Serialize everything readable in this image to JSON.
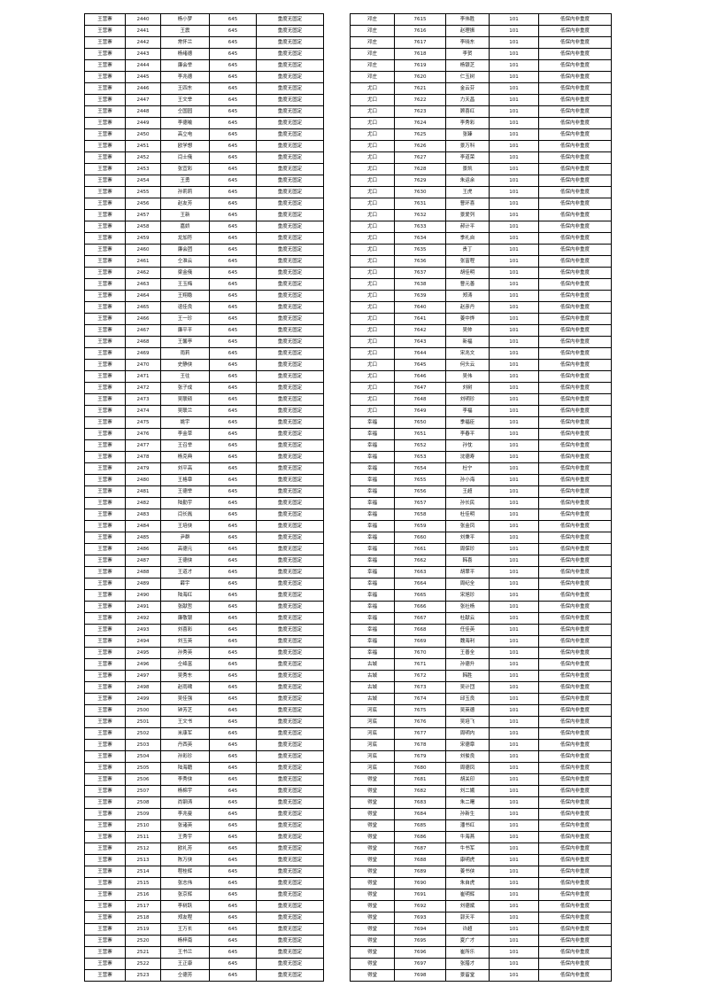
{
  "left_table": {
    "rows": [
      [
        "王营寨",
        "2440",
        "杨小梦",
        "645",
        "重度无固定"
      ],
      [
        "王营寨",
        "2441",
        "王震",
        "645",
        "重度无固定"
      ],
      [
        "王营寨",
        "2442",
        "常怀兰",
        "645",
        "重度无固定"
      ],
      [
        "王营寨",
        "2443",
        "杨绪德",
        "645",
        "重度无固定"
      ],
      [
        "王营寨",
        "2444",
        "廉会举",
        "645",
        "重度无固定"
      ],
      [
        "王营寨",
        "2445",
        "李兆德",
        "645",
        "重度无固定"
      ],
      [
        "王营寨",
        "2446",
        "王四东",
        "645",
        "重度无固定"
      ],
      [
        "王营寨",
        "2447",
        "王文举",
        "645",
        "重度无固定"
      ],
      [
        "王营寨",
        "2448",
        "仝国园",
        "645",
        "重度无固定"
      ],
      [
        "王营寨",
        "2449",
        "李德喻",
        "645",
        "重度无固定"
      ],
      [
        "王营寨",
        "2450",
        "高立电",
        "645",
        "重度无固定"
      ],
      [
        "王营寨",
        "2451",
        "欧学想",
        "645",
        "重度无固定"
      ],
      [
        "王营寨",
        "2452",
        "闫士俄",
        "645",
        "重度无固定"
      ],
      [
        "王营寨",
        "2453",
        "张宜彩",
        "645",
        "重度无固定"
      ],
      [
        "王营寨",
        "2454",
        "王勇",
        "645",
        "重度无固定"
      ],
      [
        "王营寨",
        "2455",
        "孙莉莉",
        "645",
        "重度无固定"
      ],
      [
        "王营寨",
        "2456",
        "赵友芳",
        "645",
        "重度无固定"
      ],
      [
        "王营寨",
        "2457",
        "王新",
        "645",
        "重度无固定"
      ],
      [
        "王营寨",
        "2458",
        "嘉娇",
        "645",
        "重度无固定"
      ],
      [
        "王营寨",
        "2459",
        "龙加符",
        "645",
        "重度无固定"
      ],
      [
        "王营寨",
        "2460",
        "廉会团",
        "645",
        "重度无固定"
      ],
      [
        "王营寨",
        "2461",
        "仝淮云",
        "645",
        "重度无固定"
      ],
      [
        "王营寨",
        "2462",
        "梁金俄",
        "645",
        "重度无固定"
      ],
      [
        "王营寨",
        "2463",
        "王玉梅",
        "645",
        "重度无固定"
      ],
      [
        "王营寨",
        "2464",
        "王翔稳",
        "645",
        "重度无固定"
      ],
      [
        "王营寨",
        "2465",
        "谊佳良",
        "645",
        "重度无固定"
      ],
      [
        "王营寨",
        "2466",
        "王一珍",
        "645",
        "重度无固定"
      ],
      [
        "王营寨",
        "2467",
        "廉平平",
        "645",
        "重度无固定"
      ],
      [
        "王营寨",
        "2468",
        "王馨亭",
        "645",
        "重度无固定"
      ],
      [
        "王营寨",
        "2469",
        "雨莉",
        "645",
        "重度无固定"
      ],
      [
        "王营寨",
        "2470",
        "史静侠",
        "645",
        "重度无固定"
      ],
      [
        "王营寨",
        "2471",
        "王往",
        "645",
        "重度无固定"
      ],
      [
        "王营寨",
        "2472",
        "张子成",
        "645",
        "重度无固定"
      ],
      [
        "王营寨",
        "2473",
        "吴联硕",
        "645",
        "重度无固定"
      ],
      [
        "王营寨",
        "2474",
        "吴联兰",
        "645",
        "重度无固定"
      ],
      [
        "王营寨",
        "2475",
        "姚宇",
        "645",
        "重度无固定"
      ],
      [
        "王营寨",
        "2476",
        "李金草",
        "645",
        "重度无固定"
      ],
      [
        "王营寨",
        "2477",
        "王召举",
        "645",
        "重度无固定"
      ],
      [
        "王营寨",
        "2478",
        "杨克典",
        "645",
        "重度无固定"
      ],
      [
        "王营寨",
        "2479",
        "刘平高",
        "645",
        "重度无固定"
      ],
      [
        "王营寨",
        "2480",
        "王格章",
        "645",
        "重度无固定"
      ],
      [
        "王营寨",
        "2481",
        "王德举",
        "645",
        "重度无固定"
      ],
      [
        "王营寨",
        "2482",
        "陆勤宇",
        "645",
        "重度无固定"
      ],
      [
        "王营寨",
        "2483",
        "闫长胤",
        "645",
        "重度无固定"
      ],
      [
        "王营寨",
        "2484",
        "王培侠",
        "645",
        "重度无固定"
      ],
      [
        "王营寨",
        "2485",
        "尹群",
        "645",
        "重度无固定"
      ],
      [
        "王营寨",
        "2486",
        "高德元",
        "645",
        "重度无固定"
      ],
      [
        "王营寨",
        "2487",
        "王德侠",
        "645",
        "重度无固定"
      ],
      [
        "王营寨",
        "2488",
        "王道才",
        "645",
        "重度无固定"
      ],
      [
        "王营寨",
        "2489",
        "薛宇",
        "645",
        "重度无固定"
      ],
      [
        "王营寨",
        "2490",
        "陆海红",
        "645",
        "重度无固定"
      ],
      [
        "王营寨",
        "2491",
        "张献哲",
        "645",
        "重度无固定"
      ],
      [
        "王营寨",
        "2492",
        "廉敬银",
        "645",
        "重度无固定"
      ],
      [
        "王营寨",
        "2493",
        "刘喜彩",
        "645",
        "重度无固定"
      ],
      [
        "王营寨",
        "2494",
        "刘玉英",
        "645",
        "重度无固定"
      ],
      [
        "王营寨",
        "2495",
        "孙秀英",
        "645",
        "重度无固定"
      ],
      [
        "王营寨",
        "2496",
        "仝绛富",
        "645",
        "重度无固定"
      ],
      [
        "王营寨",
        "2497",
        "吴秀东",
        "645",
        "重度无固定"
      ],
      [
        "王营寨",
        "2498",
        "赵雨啸",
        "645",
        "重度无固定"
      ],
      [
        "王营寨",
        "2499",
        "吴佳强",
        "645",
        "重度无固定"
      ],
      [
        "王营寨",
        "2500",
        "钟芳芝",
        "645",
        "重度无固定"
      ],
      [
        "王营寨",
        "2501",
        "王文书",
        "645",
        "重度无固定"
      ],
      [
        "王营寨",
        "2502",
        "米康军",
        "645",
        "重度无固定"
      ],
      [
        "王营寨",
        "2503",
        "丹西英",
        "645",
        "重度无固定"
      ],
      [
        "王营寨",
        "2504",
        "孙彩珍",
        "645",
        "重度无固定"
      ],
      [
        "王营寨",
        "2505",
        "陆海籍",
        "645",
        "重度无固定"
      ],
      [
        "王营寨",
        "2506",
        "李秀侠",
        "645",
        "重度无固定"
      ],
      [
        "王营寨",
        "2507",
        "杨棉宇",
        "645",
        "重度无固定"
      ],
      [
        "王营寨",
        "2508",
        "尚钢涛",
        "645",
        "重度无固定"
      ],
      [
        "王营寨",
        "2509",
        "李兆曼",
        "645",
        "重度无固定"
      ],
      [
        "王营寨",
        "2510",
        "张诸英",
        "645",
        "重度无固定"
      ],
      [
        "王营寨",
        "2511",
        "王秀宇",
        "645",
        "重度无固定"
      ],
      [
        "王营寨",
        "2512",
        "欧礼芳",
        "645",
        "重度无固定"
      ],
      [
        "王营寨",
        "2513",
        "陈万侠",
        "645",
        "重度无固定"
      ],
      [
        "王营寨",
        "2514",
        "程桂辉",
        "645",
        "重度无固定"
      ],
      [
        "王营寨",
        "2515",
        "张志伟",
        "645",
        "重度无固定"
      ],
      [
        "王营寨",
        "2516",
        "张京辉",
        "645",
        "重度无固定"
      ],
      [
        "王营寨",
        "2517",
        "李树跃",
        "645",
        "重度无固定"
      ],
      [
        "王营寨",
        "2518",
        "郑友程",
        "645",
        "重度无固定"
      ],
      [
        "王营寨",
        "2519",
        "王万长",
        "645",
        "重度无固定"
      ],
      [
        "王营寨",
        "2520",
        "杨梓南",
        "645",
        "重度无固定"
      ],
      [
        "王营寨",
        "2521",
        "王书兰",
        "645",
        "重度无固定"
      ],
      [
        "王营寨",
        "2522",
        "王正康",
        "645",
        "重度无固定"
      ],
      [
        "王营寨",
        "2523",
        "仝德芳",
        "645",
        "重度无固定"
      ]
    ]
  },
  "right_table": {
    "rows": [
      [
        "邓庄",
        "7615",
        "李伟胜",
        "101",
        "低保内非重度"
      ],
      [
        "邓庄",
        "7616",
        "赵理振",
        "101",
        "低保内非重度"
      ],
      [
        "邓庄",
        "7617",
        "李晓东",
        "101",
        "低保内非重度"
      ],
      [
        "邓庄",
        "7618",
        "李贺",
        "101",
        "低保内非重度"
      ],
      [
        "邓庄",
        "7619",
        "杨银芝",
        "101",
        "低保内非重度"
      ],
      [
        "邓庄",
        "7620",
        "仁玉树",
        "101",
        "低保内非重度"
      ],
      [
        "尤口",
        "7621",
        "金云芬",
        "101",
        "低保内非重度"
      ],
      [
        "尤口",
        "7622",
        "力天昌",
        "101",
        "低保内非重度"
      ],
      [
        "尤口",
        "7623",
        "顾喜红",
        "101",
        "低保内非重度"
      ],
      [
        "尤口",
        "7624",
        "李秀彩",
        "101",
        "低保内非重度"
      ],
      [
        "尤口",
        "7625",
        "张臻",
        "101",
        "低保内非重度"
      ],
      [
        "尤口",
        "7626",
        "景万科",
        "101",
        "低保内非重度"
      ],
      [
        "尤口",
        "7627",
        "李道荣",
        "101",
        "低保内非重度"
      ],
      [
        "尤口",
        "7628",
        "景凯",
        "101",
        "低保内非重度"
      ],
      [
        "尤口",
        "7629",
        "朱运余",
        "101",
        "低保内非重度"
      ],
      [
        "尤口",
        "7630",
        "王虎",
        "101",
        "低保内非重度"
      ],
      [
        "尤口",
        "7631",
        "曹环喜",
        "101",
        "低保内非重度"
      ],
      [
        "尤口",
        "7632",
        "景爱列",
        "101",
        "低保内非重度"
      ],
      [
        "尤口",
        "7633",
        "郝计平",
        "101",
        "低保内非重度"
      ],
      [
        "尤口",
        "7634",
        "季礼自",
        "101",
        "低保内非重度"
      ],
      [
        "尤口",
        "7635",
        "贵丁",
        "101",
        "低保内非重度"
      ],
      [
        "尤口",
        "7636",
        "张富程",
        "101",
        "低保内非重度"
      ],
      [
        "尤口",
        "7637",
        "胡佳明",
        "101",
        "低保内非重度"
      ],
      [
        "尤口",
        "7638",
        "曹元善",
        "101",
        "低保内非重度"
      ],
      [
        "尤口",
        "7639",
        "郑涛",
        "101",
        "低保内非重度"
      ],
      [
        "尤口",
        "7640",
        "赵彦丹",
        "101",
        "低保内非重度"
      ],
      [
        "尤口",
        "7641",
        "姜中烨",
        "101",
        "低保内非重度"
      ],
      [
        "尤口",
        "7642",
        "吴帅",
        "101",
        "低保内非重度"
      ],
      [
        "尤口",
        "7643",
        "新福",
        "101",
        "低保内非重度"
      ],
      [
        "尤口",
        "7644",
        "宋兆文",
        "101",
        "低保内非重度"
      ],
      [
        "尤口",
        "7645",
        "何头云",
        "101",
        "低保内非重度"
      ],
      [
        "尤口",
        "7646",
        "吴伟",
        "101",
        "低保内非重度"
      ],
      [
        "尤口",
        "7647",
        "刘树",
        "101",
        "低保内非重度"
      ],
      [
        "尤口",
        "7648",
        "刘明珍",
        "101",
        "低保内非重度"
      ],
      [
        "尤口",
        "7649",
        "李福",
        "101",
        "低保内非重度"
      ],
      [
        "幸福",
        "7650",
        "季福臣",
        "101",
        "低保内非重度"
      ],
      [
        "幸福",
        "7651",
        "李春平",
        "101",
        "低保内非重度"
      ],
      [
        "幸福",
        "7652",
        "孙忱",
        "101",
        "低保内非重度"
      ],
      [
        "幸福",
        "7653",
        "沈德寿",
        "101",
        "低保内非重度"
      ],
      [
        "幸福",
        "7654",
        "杜宁",
        "101",
        "低保内非重度"
      ],
      [
        "幸福",
        "7655",
        "孙小海",
        "101",
        "低保内非重度"
      ],
      [
        "幸福",
        "7656",
        "王超",
        "101",
        "低保内非重度"
      ],
      [
        "幸福",
        "7657",
        "孙长民",
        "101",
        "低保内非重度"
      ],
      [
        "幸福",
        "7658",
        "杜佳明",
        "101",
        "低保内非重度"
      ],
      [
        "幸福",
        "7659",
        "张金凤",
        "101",
        "低保内非重度"
      ],
      [
        "幸福",
        "7660",
        "刘秉平",
        "101",
        "低保内非重度"
      ],
      [
        "幸福",
        "7661",
        "周保珍",
        "101",
        "低保内非重度"
      ],
      [
        "幸福",
        "7662",
        "韩喜",
        "101",
        "低保内非重度"
      ],
      [
        "幸福",
        "7663",
        "胡翠平",
        "101",
        "低保内非重度"
      ],
      [
        "幸福",
        "7664",
        "周纪全",
        "101",
        "低保内非重度"
      ],
      [
        "幸福",
        "7665",
        "宋旭珍",
        "101",
        "低保内非重度"
      ],
      [
        "幸福",
        "7666",
        "张社杨",
        "101",
        "低保内非重度"
      ],
      [
        "幸福",
        "7667",
        "杜献云",
        "101",
        "低保内非重度"
      ],
      [
        "幸福",
        "7668",
        "任佳英",
        "101",
        "低保内非重度"
      ],
      [
        "幸福",
        "7669",
        "魏海利",
        "101",
        "低保内非重度"
      ],
      [
        "幸福",
        "7670",
        "王善全",
        "101",
        "低保内非重度"
      ],
      [
        "古城",
        "7671",
        "孙德升",
        "101",
        "低保内非重度"
      ],
      [
        "古城",
        "7672",
        "韩胜",
        "101",
        "低保内非重度"
      ],
      [
        "古城",
        "7673",
        "吴计団",
        "101",
        "低保内非重度"
      ],
      [
        "古城",
        "7674",
        "邱玉良",
        "101",
        "低保内非重度"
      ],
      [
        "河底",
        "7675",
        "吴英德",
        "101",
        "低保内非重度"
      ],
      [
        "河底",
        "7676",
        "吴培飞",
        "101",
        "低保内非重度"
      ],
      [
        "河底",
        "7677",
        "周明内",
        "101",
        "低保内非重度"
      ],
      [
        "河底",
        "7678",
        "宋德章",
        "101",
        "低保内非重度"
      ],
      [
        "河底",
        "7679",
        "刘俊良",
        "101",
        "低保内非重度"
      ],
      [
        "河底",
        "7680",
        "周德凤",
        "101",
        "低保内非重度"
      ],
      [
        "得堂",
        "7681",
        "胡关印",
        "101",
        "低保内非重度"
      ],
      [
        "得堂",
        "7682",
        "刘二娥",
        "101",
        "低保内非重度"
      ],
      [
        "得堂",
        "7683",
        "朱二曙",
        "101",
        "低保内非重度"
      ],
      [
        "得堂",
        "7684",
        "孙新生",
        "101",
        "低保内非重度"
      ],
      [
        "得堂",
        "7685",
        "潘书红",
        "101",
        "低保内非重度"
      ],
      [
        "得堂",
        "7686",
        "牛海燕",
        "101",
        "低保内非重度"
      ],
      [
        "得堂",
        "7687",
        "牛书军",
        "101",
        "低保内非重度"
      ],
      [
        "得堂",
        "7688",
        "康明虎",
        "101",
        "低保内非重度"
      ],
      [
        "得堂",
        "7689",
        "姜书侠",
        "101",
        "低保内非重度"
      ],
      [
        "得堂",
        "7690",
        "朱自虎",
        "101",
        "低保内非重度"
      ],
      [
        "得堂",
        "7691",
        "崔明辉",
        "101",
        "低保内非重度"
      ],
      [
        "得堂",
        "7692",
        "刘德斌",
        "101",
        "低保内非重度"
      ],
      [
        "得堂",
        "7693",
        "郭天平",
        "101",
        "低保内非重度"
      ],
      [
        "得堂",
        "7694",
        "许超",
        "101",
        "低保内非重度"
      ],
      [
        "得堂",
        "7695",
        "夏广才",
        "101",
        "低保内非重度"
      ],
      [
        "得堂",
        "7696",
        "崔所乐",
        "101",
        "低保内非重度"
      ],
      [
        "得堂",
        "7697",
        "张腊才",
        "101",
        "低保内非重度"
      ],
      [
        "得堂",
        "7698",
        "景留堂",
        "101",
        "低保内非重度"
      ]
    ]
  }
}
